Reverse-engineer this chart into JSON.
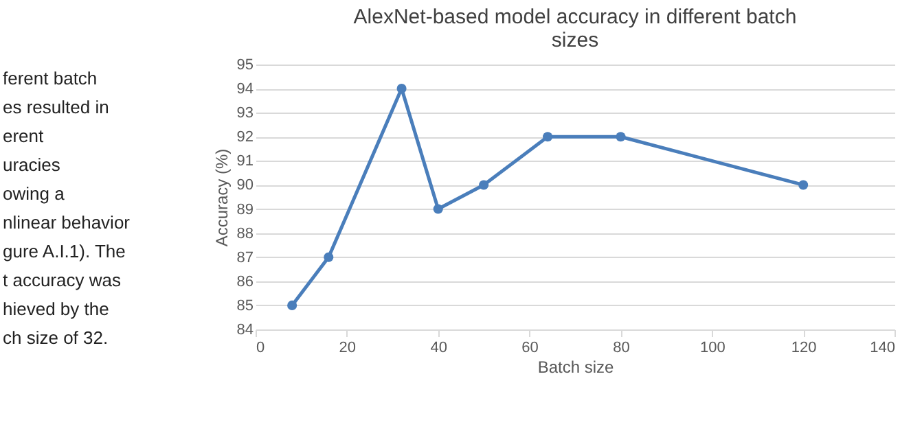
{
  "chart_data": {
    "type": "line",
    "title": "AlexNet-based model accuracy in different batch sizes",
    "xlabel": "Batch size",
    "ylabel": "Accuracy (%)",
    "x": [
      8,
      16,
      32,
      40,
      50,
      64,
      80,
      120
    ],
    "series": [
      {
        "color": "#4a7ebb",
        "values": [
          85,
          87,
          94,
          89,
          90,
          92,
          92,
          90
        ]
      }
    ],
    "xlim": [
      0,
      140
    ],
    "xticks": [
      0,
      20,
      40,
      60,
      80,
      100,
      120,
      140
    ],
    "ylim": [
      84,
      95
    ],
    "yticks": [
      84,
      85,
      86,
      87,
      88,
      89,
      90,
      91,
      92,
      93,
      94,
      95
    ],
    "grid": "y",
    "marker": "circle",
    "line_style": "solid",
    "annotations": [
      "ferent batch",
      "es resulted in",
      "erent",
      "uracies",
      "owing a",
      "nlinear behavior",
      "gure A.I.1). The",
      "t accuracy was",
      "hieved by the",
      "ch size of 32."
    ]
  }
}
